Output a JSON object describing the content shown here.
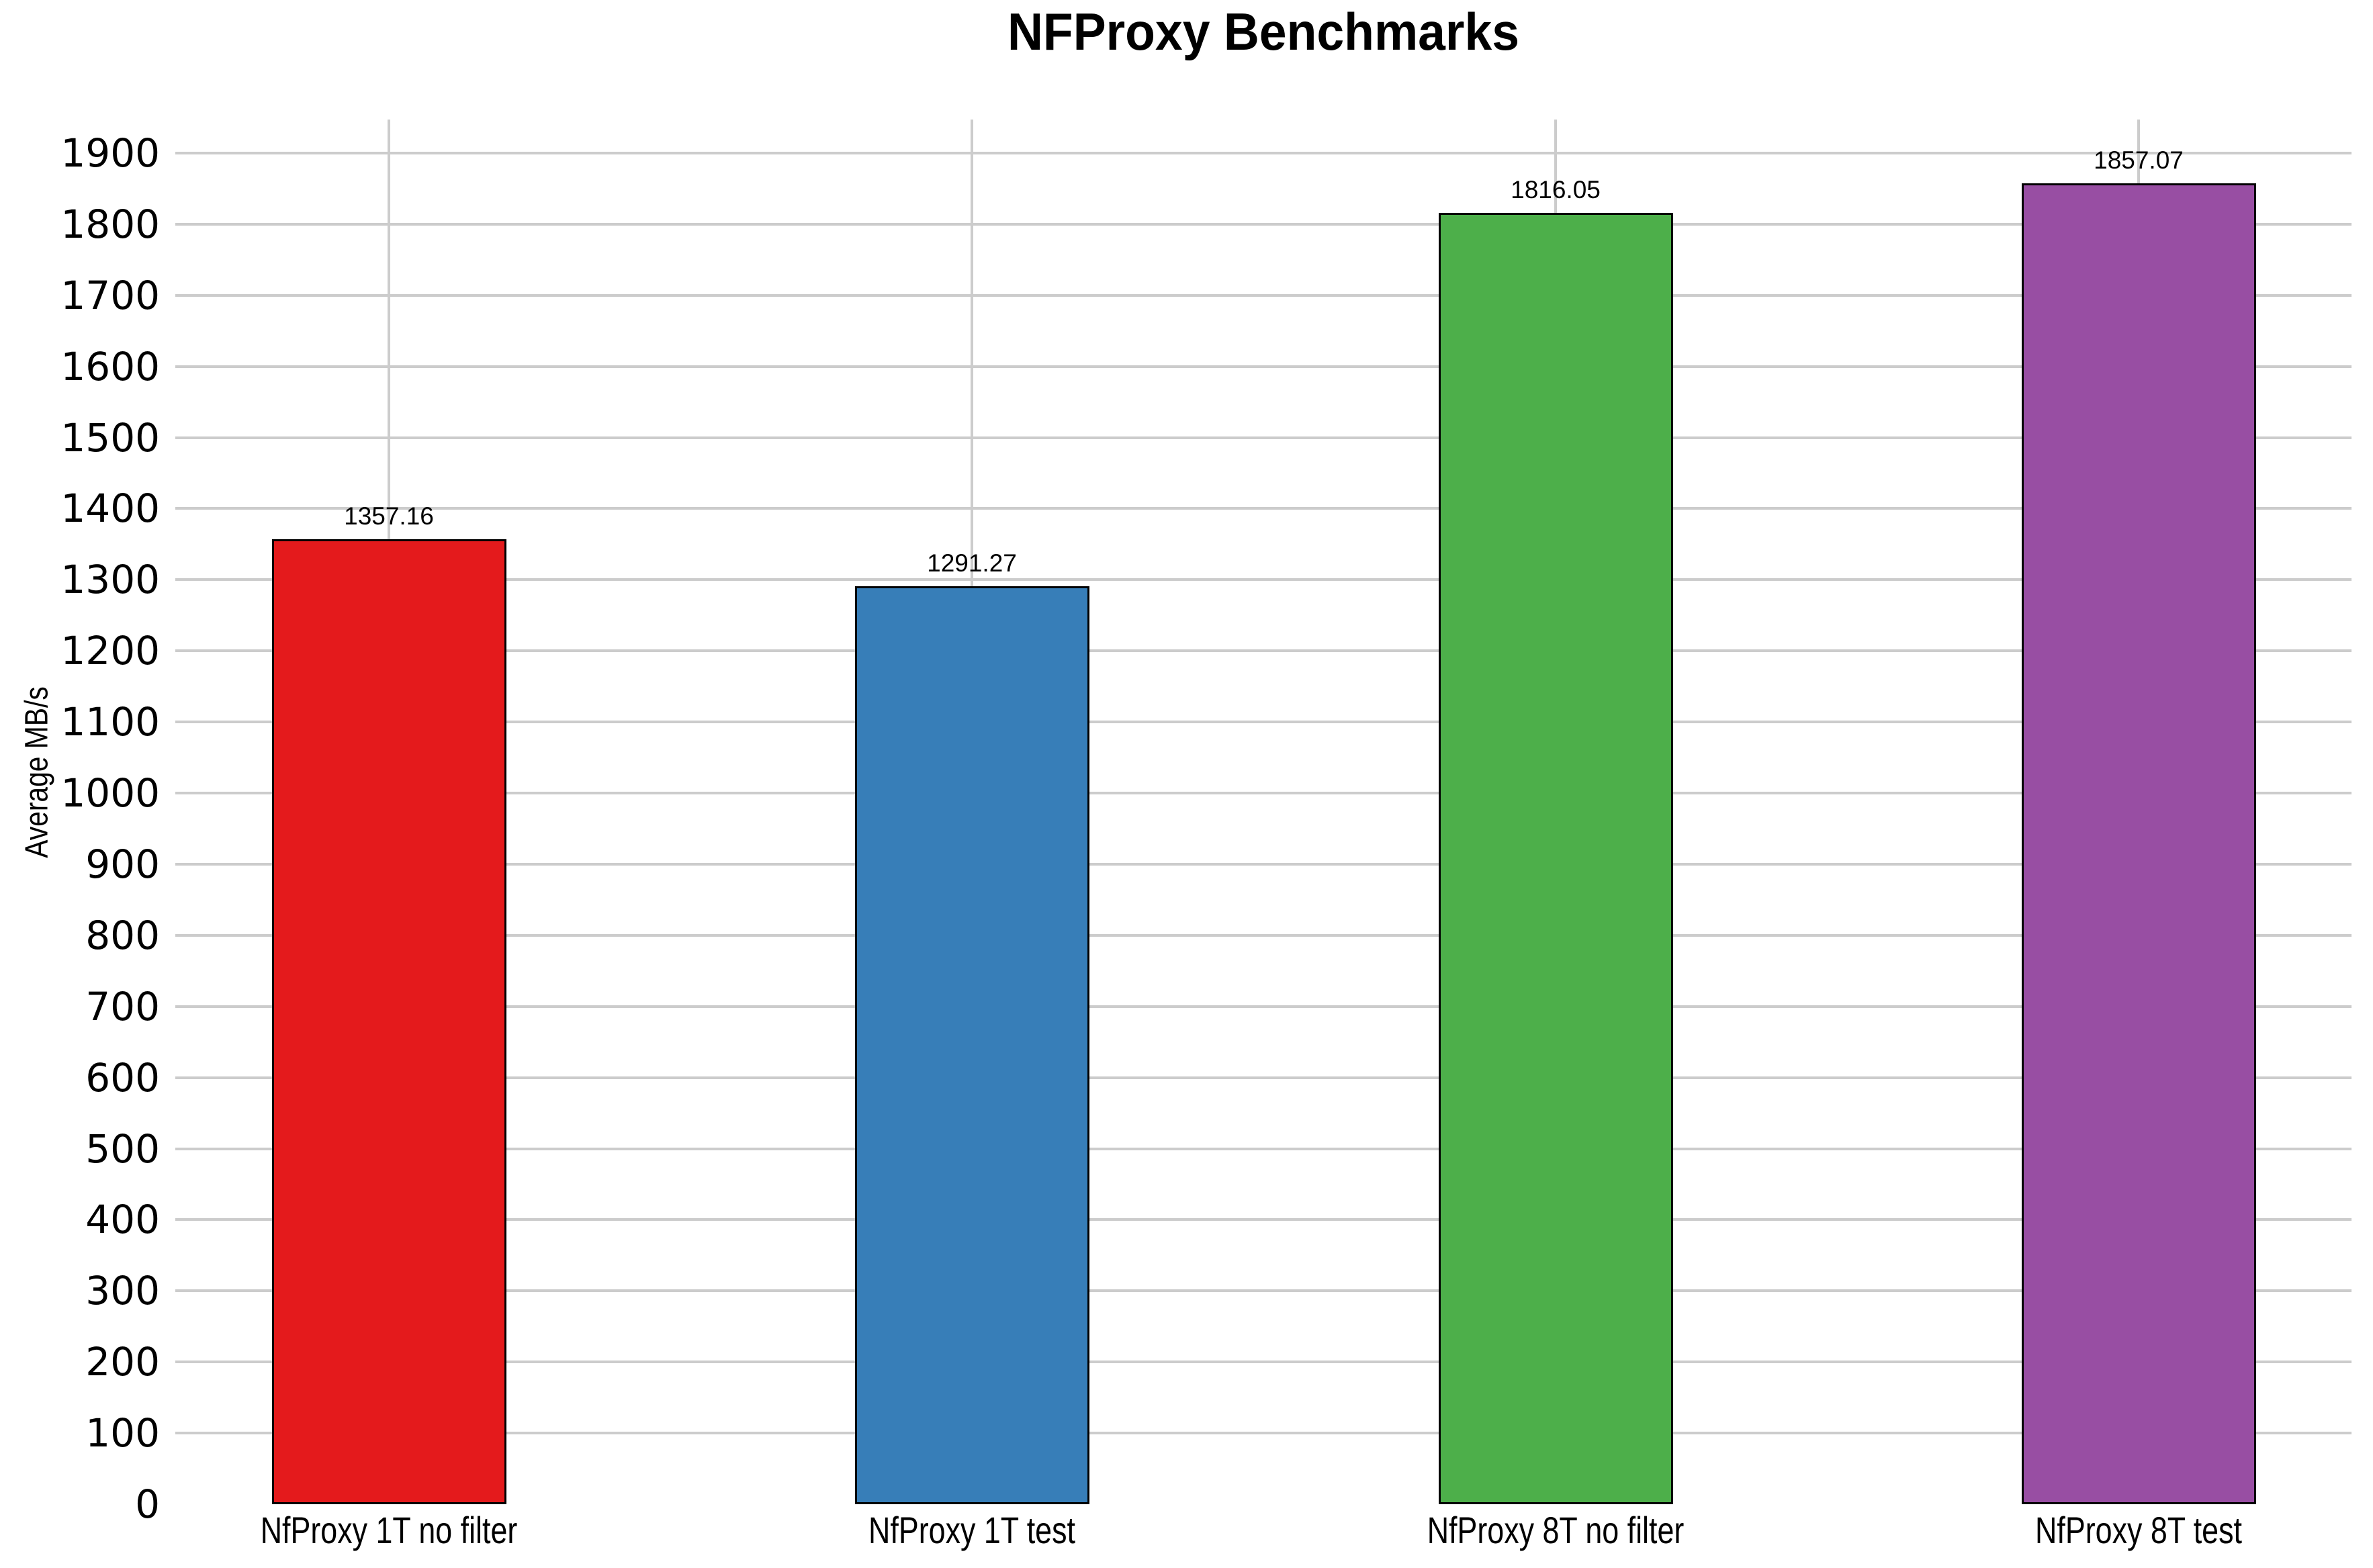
{
  "chart_data": {
    "type": "bar",
    "title": "NFProxy Benchmarks",
    "xlabel": "",
    "ylabel": "Average MB/s",
    "categories": [
      "NfProxy 1T no filter",
      "NfProxy 1T test",
      "NfProxy 8T no filter",
      "NfProxy 8T test"
    ],
    "values": [
      1357.16,
      1291.27,
      1816.05,
      1857.07
    ],
    "value_labels": [
      "1357.16",
      "1291.27",
      "1816.05",
      "1857.07"
    ],
    "bar_colors": [
      "#E41A1C",
      "#377EB8",
      "#4DAF4A",
      "#984EA3"
    ],
    "ylim": [
      0,
      1900
    ],
    "ytick_step": 100,
    "yticks": [
      0,
      100,
      200,
      300,
      400,
      500,
      600,
      700,
      800,
      900,
      1000,
      1100,
      1200,
      1300,
      1400,
      1500,
      1600,
      1700,
      1800,
      1900
    ],
    "grid": "on",
    "gridline_color": "#CCCCCC",
    "bar_border_color": "#000000",
    "text_color": "#000000",
    "background_color": "#FFFFFF",
    "legend_position": "none"
  }
}
